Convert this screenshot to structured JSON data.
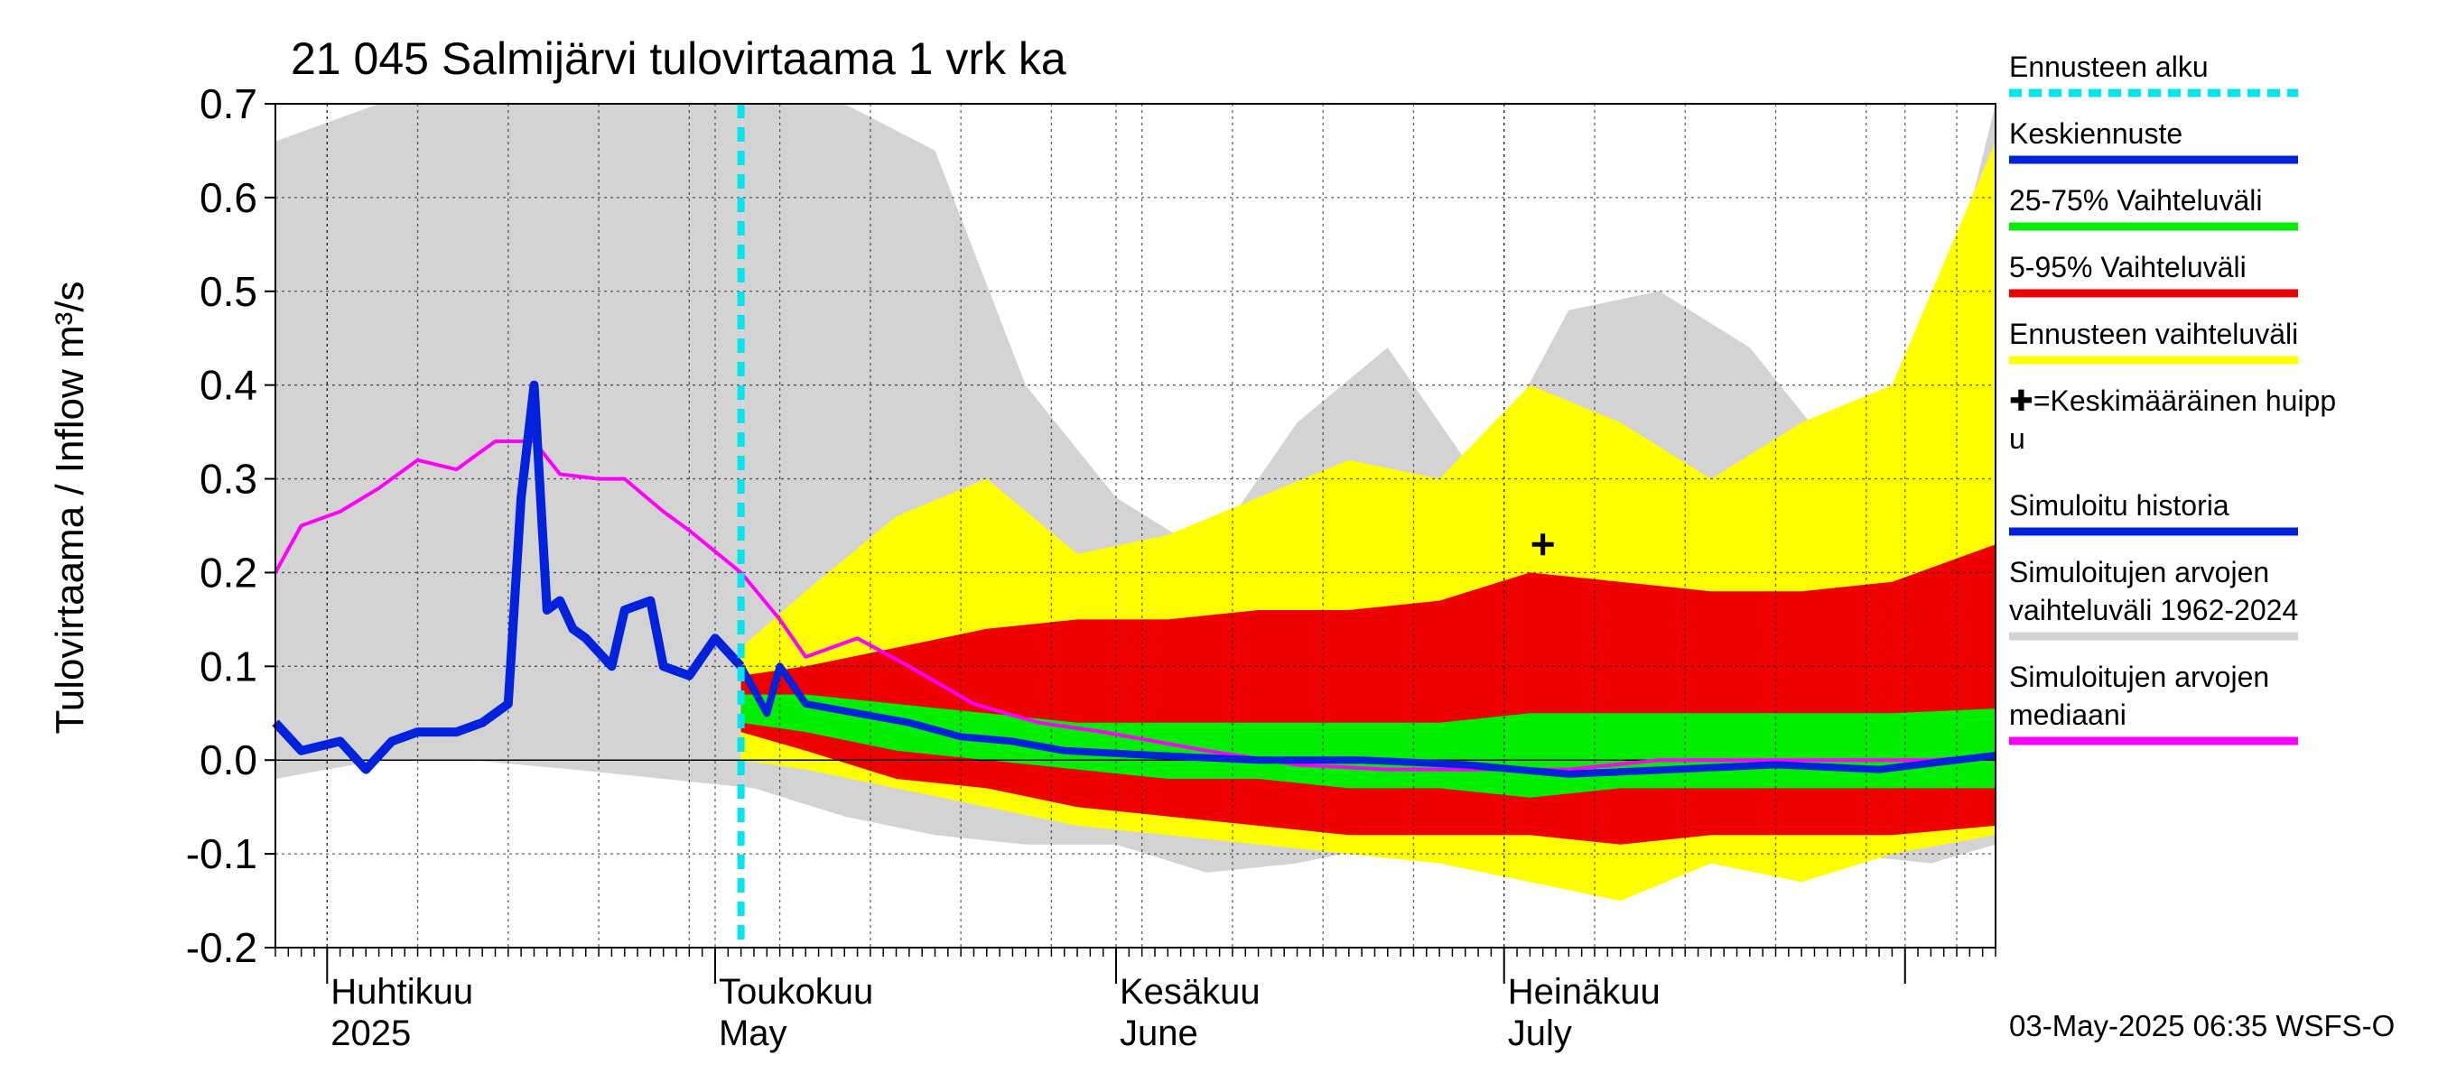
{
  "chart_data": {
    "type": "area",
    "title": "21 045 Salmijärvi tulovirtaama 1 vrk ka",
    "ylabel": "Tulovirtaama / Inflow   m³/s",
    "ylim": [
      -0.2,
      0.7
    ],
    "yticks": [
      "-0.2",
      "-0.1",
      "0.0",
      "0.1",
      "0.2",
      "0.3",
      "0.4",
      "0.5",
      "0.6",
      "0.7"
    ],
    "xlim": [
      "2025-03-28",
      "2025-08-08"
    ],
    "month_labels": [
      {
        "date": "2025-04-01",
        "fi": "Huhtikuu",
        "en": "2025"
      },
      {
        "date": "2025-05-01",
        "fi": "Toukokuu",
        "en": "May"
      },
      {
        "date": "2025-06-01",
        "fi": "Kesäkuu",
        "en": "June"
      },
      {
        "date": "2025-07-01",
        "fi": "Heinäkuu",
        "en": "July"
      }
    ],
    "forecast_start": "2025-05-03",
    "timestamp": "03-May-2025 06:35 WSFS-O",
    "mean_peak": {
      "date": "2025-07-04",
      "value": 0.23
    },
    "legend": [
      {
        "label": "Ennusteen alku",
        "color": "#00e5ee",
        "style": "dashed"
      },
      {
        "label": "Keskiennuste",
        "color": "#0022dd",
        "style": "line"
      },
      {
        "label": "25-75% Vaihteluväli",
        "color": "#00ee00",
        "style": "line"
      },
      {
        "label": "5-95% Vaihteluväli",
        "color": "#ee0000",
        "style": "line"
      },
      {
        "label": "Ennusteen vaihteluväli",
        "color": "#ffff00",
        "style": "line"
      },
      {
        "label": "✚=Keskimääräinen huipp",
        "label2": "u",
        "color": "",
        "style": "none"
      },
      {
        "label": "Simuloitu historia",
        "color": "#0022dd",
        "style": "line"
      },
      {
        "label": "Simuloitujen arvojen",
        "label2": "vaihteluväli 1962-2024",
        "color": "#d3d3d3",
        "style": "line"
      },
      {
        "label": "Simuloitujen arvojen",
        "label2": "mediaani",
        "color": "#ff00ff",
        "style": "line"
      }
    ],
    "colors": {
      "history_range": "#d3d3d3",
      "forecast_range": "#ffff00",
      "p5_95": "#ee0000",
      "p25_75": "#00ee00",
      "median": "#ff00ff",
      "simulated": "#0022dd",
      "forecast_mean": "#0022dd",
      "forecast_start": "#00e5ee"
    },
    "series": [
      {
        "name": "Simuloitujen arvojen vaihteluväli 1962-2024",
        "x": [
          "2025-03-28",
          "2025-04-05",
          "2025-04-12",
          "2025-04-20",
          "2025-04-27",
          "2025-05-04",
          "2025-05-11",
          "2025-05-18",
          "2025-05-25",
          "2025-06-01",
          "2025-06-08",
          "2025-06-15",
          "2025-06-22",
          "2025-06-29",
          "2025-07-06",
          "2025-07-13",
          "2025-07-20",
          "2025-07-27",
          "2025-08-03",
          "2025-08-08"
        ],
        "high": [
          0.66,
          0.7,
          0.7,
          0.7,
          0.7,
          0.7,
          0.7,
          0.65,
          0.4,
          0.28,
          0.22,
          0.36,
          0.44,
          0.3,
          0.48,
          0.5,
          0.44,
          0.32,
          0.42,
          0.7
        ],
        "low": [
          -0.02,
          0.0,
          0.0,
          -0.01,
          -0.02,
          -0.03,
          -0.06,
          -0.08,
          -0.09,
          -0.09,
          -0.12,
          -0.11,
          -0.09,
          -0.1,
          -0.1,
          -0.09,
          -0.11,
          -0.1,
          -0.11,
          -0.09
        ]
      },
      {
        "name": "Ennusteen vaihteluväli",
        "x": [
          "2025-05-03",
          "2025-05-08",
          "2025-05-15",
          "2025-05-22",
          "2025-05-29",
          "2025-06-05",
          "2025-06-12",
          "2025-06-19",
          "2025-06-26",
          "2025-07-03",
          "2025-07-10",
          "2025-07-17",
          "2025-07-24",
          "2025-07-31",
          "2025-08-08"
        ],
        "high": [
          0.12,
          0.18,
          0.26,
          0.3,
          0.22,
          0.24,
          0.28,
          0.32,
          0.3,
          0.4,
          0.36,
          0.3,
          0.36,
          0.4,
          0.66
        ],
        "low": [
          0.0,
          -0.01,
          -0.03,
          -0.05,
          -0.07,
          -0.08,
          -0.09,
          -0.1,
          -0.11,
          -0.13,
          -0.15,
          -0.11,
          -0.13,
          -0.1,
          -0.08
        ]
      },
      {
        "name": "5-95% Vaihteluväli",
        "x": [
          "2025-05-03",
          "2025-05-08",
          "2025-05-15",
          "2025-05-22",
          "2025-05-29",
          "2025-06-05",
          "2025-06-12",
          "2025-06-19",
          "2025-06-26",
          "2025-07-03",
          "2025-07-10",
          "2025-07-17",
          "2025-07-24",
          "2025-07-31",
          "2025-08-08"
        ],
        "high": [
          0.09,
          0.1,
          0.12,
          0.14,
          0.15,
          0.15,
          0.16,
          0.16,
          0.17,
          0.2,
          0.19,
          0.18,
          0.18,
          0.19,
          0.23
        ],
        "low": [
          0.03,
          0.01,
          -0.02,
          -0.03,
          -0.05,
          -0.06,
          -0.07,
          -0.08,
          -0.08,
          -0.08,
          -0.09,
          -0.08,
          -0.08,
          -0.08,
          -0.07
        ]
      },
      {
        "name": "25-75% Vaihteluväli",
        "x": [
          "2025-05-03",
          "2025-05-08",
          "2025-05-15",
          "2025-05-22",
          "2025-05-29",
          "2025-06-05",
          "2025-06-12",
          "2025-06-19",
          "2025-06-26",
          "2025-07-03",
          "2025-07-10",
          "2025-07-17",
          "2025-07-24",
          "2025-07-31",
          "2025-08-08"
        ],
        "high": [
          0.07,
          0.07,
          0.06,
          0.05,
          0.04,
          0.04,
          0.04,
          0.04,
          0.04,
          0.05,
          0.05,
          0.05,
          0.05,
          0.05,
          0.055
        ],
        "low": [
          0.04,
          0.03,
          0.01,
          0.0,
          -0.01,
          -0.02,
          -0.02,
          -0.03,
          -0.03,
          -0.04,
          -0.03,
          -0.03,
          -0.03,
          -0.03,
          -0.03
        ]
      },
      {
        "name": "Simuloitujen arvojen mediaani",
        "x": [
          "2025-03-28",
          "2025-03-30",
          "2025-04-02",
          "2025-04-05",
          "2025-04-08",
          "2025-04-11",
          "2025-04-14",
          "2025-04-17",
          "2025-04-19",
          "2025-04-22",
          "2025-04-24",
          "2025-04-27",
          "2025-04-29",
          "2025-05-03",
          "2025-05-06",
          "2025-05-08",
          "2025-05-12",
          "2025-05-16",
          "2025-05-21",
          "2025-05-26",
          "2025-05-31",
          "2025-06-08",
          "2025-06-15",
          "2025-06-22",
          "2025-06-29",
          "2025-07-06",
          "2025-07-13",
          "2025-07-20",
          "2025-07-27",
          "2025-08-03",
          "2025-08-08"
        ],
        "values": [
          0.2,
          0.25,
          0.265,
          0.29,
          0.32,
          0.31,
          0.34,
          0.34,
          0.305,
          0.3,
          0.3,
          0.265,
          0.245,
          0.2,
          0.15,
          0.11,
          0.13,
          0.1,
          0.06,
          0.04,
          0.03,
          0.01,
          -0.005,
          -0.01,
          -0.01,
          -0.01,
          0.0,
          0.0,
          0.0,
          0.0,
          0.005
        ]
      },
      {
        "name": "Simuloitu historia",
        "x": [
          "2025-03-28",
          "2025-03-30",
          "2025-04-02",
          "2025-04-04",
          "2025-04-06",
          "2025-04-08",
          "2025-04-11",
          "2025-04-13",
          "2025-04-15",
          "2025-04-16",
          "2025-04-17",
          "2025-04-18",
          "2025-04-19",
          "2025-04-20",
          "2025-04-21",
          "2025-04-23",
          "2025-04-24",
          "2025-04-26",
          "2025-04-27",
          "2025-04-29",
          "2025-05-01",
          "2025-05-03"
        ],
        "values": [
          0.04,
          0.01,
          0.02,
          -0.01,
          0.02,
          0.03,
          0.03,
          0.04,
          0.06,
          0.28,
          0.4,
          0.16,
          0.17,
          0.14,
          0.13,
          0.1,
          0.16,
          0.17,
          0.1,
          0.09,
          0.13,
          0.1
        ]
      },
      {
        "name": "Keskiennuste",
        "x": [
          "2025-05-03",
          "2025-05-05",
          "2025-05-06",
          "2025-05-08",
          "2025-05-12",
          "2025-05-16",
          "2025-05-20",
          "2025-05-24",
          "2025-05-28",
          "2025-06-04",
          "2025-06-12",
          "2025-06-20",
          "2025-06-28",
          "2025-07-06",
          "2025-07-14",
          "2025-07-22",
          "2025-07-30",
          "2025-08-08"
        ],
        "values": [
          0.1,
          0.05,
          0.1,
          0.06,
          0.05,
          0.04,
          0.025,
          0.02,
          0.01,
          0.005,
          0.0,
          0.0,
          -0.005,
          -0.015,
          -0.01,
          -0.005,
          -0.01,
          0.005
        ]
      }
    ]
  }
}
